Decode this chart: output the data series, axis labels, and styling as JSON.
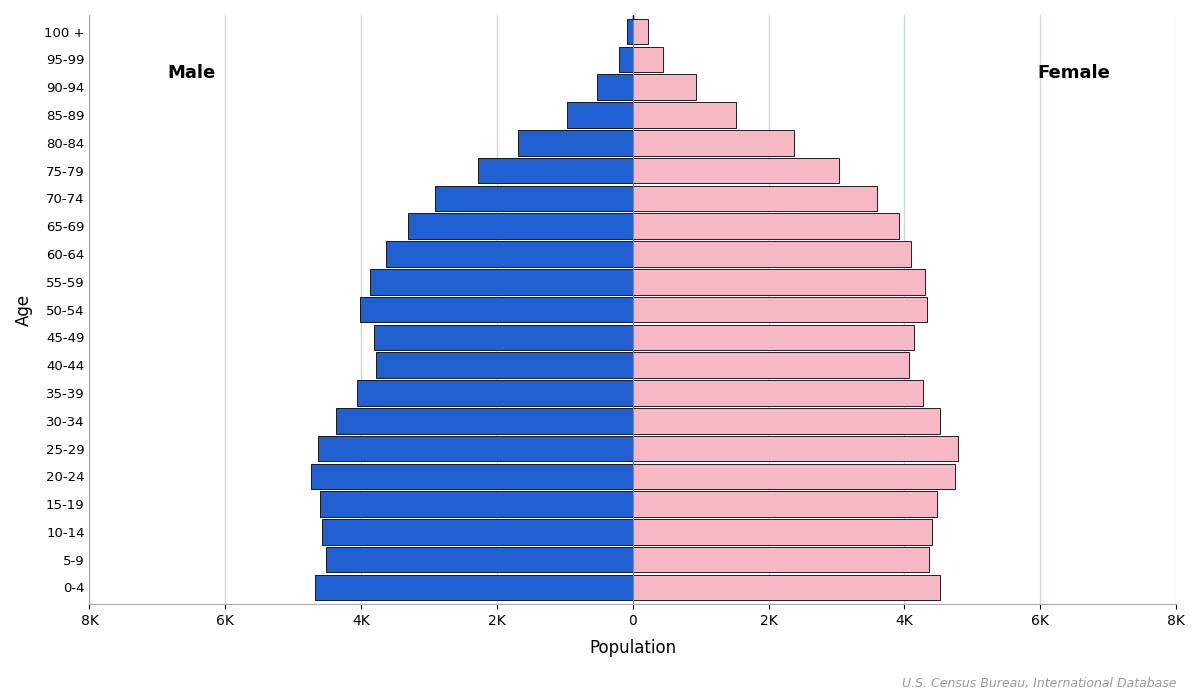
{
  "age_groups": [
    "0-4",
    "5-9",
    "10-14",
    "15-19",
    "20-24",
    "25-29",
    "30-34",
    "35-39",
    "40-44",
    "45-49",
    "50-54",
    "55-59",
    "60-64",
    "65-69",
    "70-74",
    "75-79",
    "80-84",
    "85-89",
    "90-94",
    "95-99",
    "100 +"
  ],
  "male": [
    4677,
    4524,
    4583,
    4609,
    4731,
    4637,
    4363,
    4057,
    3780,
    3808,
    4019,
    3876,
    3629,
    3303,
    2916,
    2286,
    1683,
    969,
    524,
    206,
    89
  ],
  "female": [
    4520,
    4356,
    4399,
    4479,
    4747,
    4796,
    4517,
    4270,
    4068,
    4141,
    4329,
    4310,
    4101,
    3913,
    3592,
    3041,
    2377,
    1524,
    934,
    441,
    228
  ],
  "male_color": "#2060d0",
  "female_color": "#f5b8c4",
  "bar_edgecolor": "#000000",
  "bar_linewidth": 0.6,
  "xlabel": "Population",
  "ylabel": "Age",
  "male_label": "Male",
  "female_label": "Female",
  "xlim": 8000,
  "xtick_step": 2000,
  "background_color": "#ffffff",
  "grid_color": "#c8d8e8",
  "source_text": "U.S. Census Bureau, International Database"
}
